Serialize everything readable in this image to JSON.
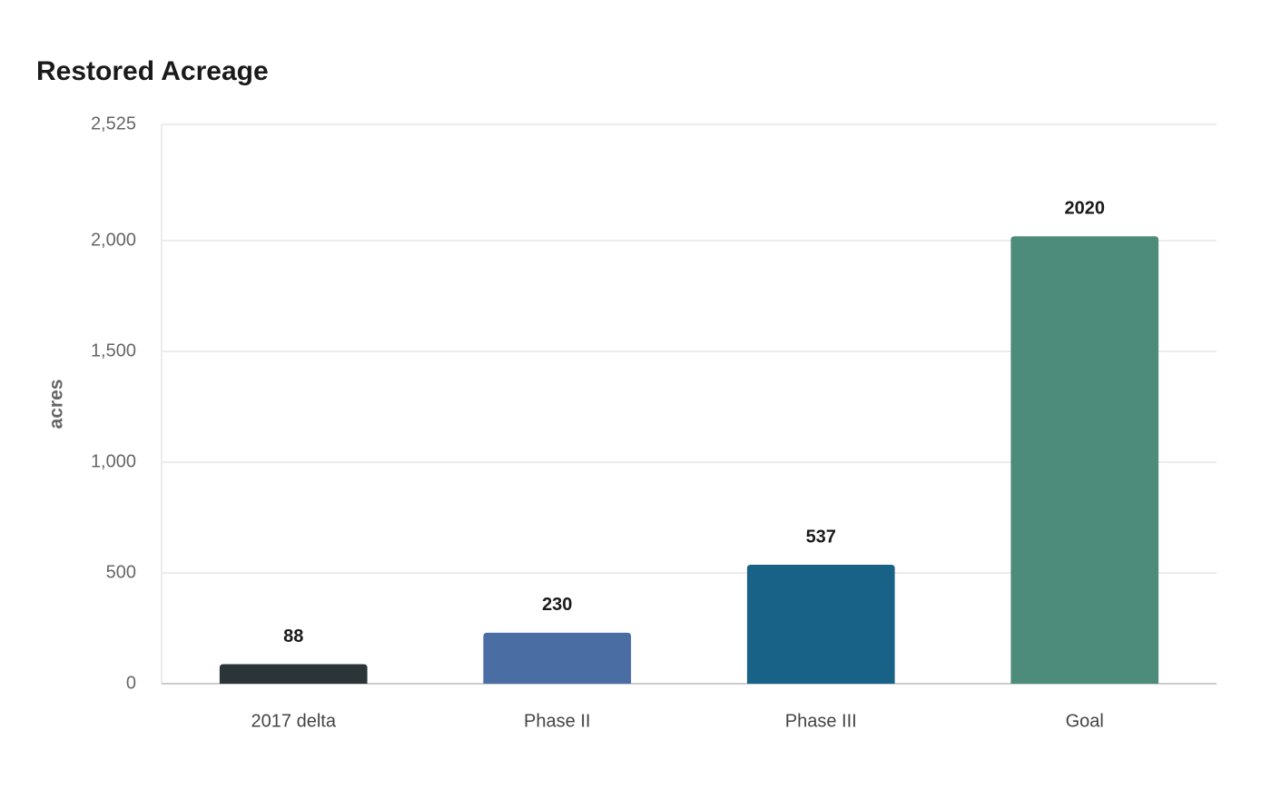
{
  "chart_data": {
    "type": "bar",
    "title": "Restored Acreage",
    "y_label": "acres",
    "categories": [
      "2017 delta",
      "Phase II",
      "Phase III",
      "Goal"
    ],
    "values": [
      88,
      230,
      537,
      2020
    ],
    "colors": [
      "#2b3538",
      "#4a6da3",
      "#186187",
      "#4d8c7a"
    ],
    "ylim": [
      0,
      2525
    ],
    "yticks": [
      0,
      500,
      {
        "value": 1000,
        "label": "1,000"
      },
      {
        "value": 1500,
        "label": "1,500"
      },
      {
        "value": 2000,
        "label": "2,000"
      },
      {
        "value": 2525,
        "label": "2,525"
      }
    ],
    "grid": true
  }
}
